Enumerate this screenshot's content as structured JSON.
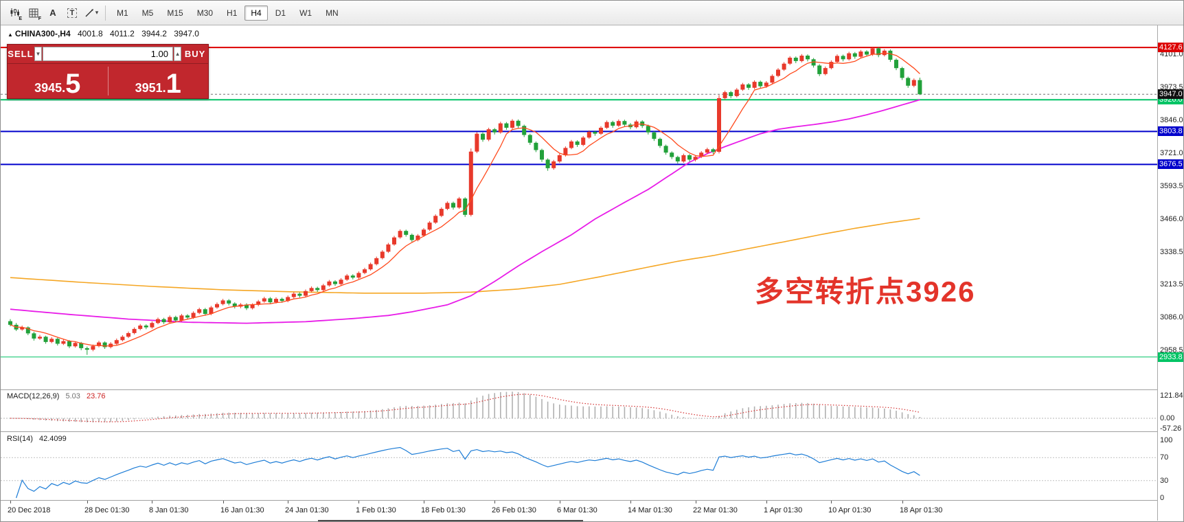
{
  "toolbar": {
    "tools": {
      "a_label": "A",
      "t_label": "T",
      "e_sub": "E",
      "f_sub": "F"
    },
    "timeframes": [
      "M1",
      "M5",
      "M15",
      "M30",
      "H1",
      "H4",
      "D1",
      "W1",
      "MN"
    ],
    "active_timeframe": "H4"
  },
  "symbol_info": {
    "symbol": "CHINA300-,H4",
    "open": "4001.8",
    "high": "4011.2",
    "low": "3944.2",
    "close": "3947.0"
  },
  "trade_panel": {
    "sell_label": "SELL",
    "buy_label": "BUY",
    "volume": "1.00",
    "sell_price": "3945.",
    "sell_price_big": "5",
    "buy_price": "3951.",
    "buy_price_big": "1"
  },
  "annotation": {
    "text": "多空转折点3926",
    "color": "#e3342a"
  },
  "macd_panel": {
    "name": "MACD(12,26,9)",
    "main_value": "5.03",
    "signal_value": "23.76",
    "axis_labels": [
      "121.84",
      "0.00",
      "-57.26"
    ],
    "axis_values": [
      121.84,
      0,
      -57.26
    ]
  },
  "rsi_panel": {
    "name": "RSI(14)",
    "value": "42.4099",
    "axis_labels": [
      "100",
      "70",
      "30",
      "0"
    ],
    "axis_values": [
      100,
      70,
      30,
      0
    ],
    "levels": [
      70,
      30
    ]
  },
  "chart_data": {
    "type": "candlestick",
    "symbol": "CHINA300-",
    "timeframe": "H4",
    "title": "CHINA300-,H4 4001.8 4011.2 3944.2 3947.0",
    "y_tick_labels": [
      "4101.0",
      "3973.5",
      "3846.0",
      "3721.0",
      "3593.5",
      "3466.0",
      "3338.5",
      "3213.5",
      "3086.0",
      "2958.5"
    ],
    "y_tick_values": [
      4101.0,
      3973.5,
      3846.0,
      3721.0,
      3593.5,
      3466.0,
      3338.5,
      3213.5,
      3086.0,
      2958.5
    ],
    "y_range": [
      2814,
      4202
    ],
    "levels": [
      {
        "label": "4127.6",
        "value": 4127.6,
        "color": "#dd0000",
        "width": 2
      },
      {
        "label": "3926.0",
        "value": 3926.0,
        "color": "#00c465",
        "width": 2
      },
      {
        "label": "3803.8",
        "value": 3803.8,
        "color": "#0000cc",
        "width": 2
      },
      {
        "label": "3676.5",
        "value": 3676.5,
        "color": "#0000cc",
        "width": 2
      },
      {
        "label": "2933.8",
        "value": 2933.8,
        "color": "#00c465",
        "width": 1
      }
    ],
    "current_price": {
      "label": "3947.0",
      "value": 3947.0,
      "tag_color": "#111111"
    },
    "x_labels": {
      "texts": [
        "20 Dec 2018",
        "28 Dec 01:30",
        "8 Jan 01:30",
        "16 Jan 01:30",
        "24 Jan 01:30",
        "1 Feb 01:30",
        "18 Feb 01:30",
        "26 Feb 01:30",
        "6 Mar 01:30",
        "14 Mar 01:30",
        "22 Mar 01:30",
        "1 Apr 01:30",
        "10 Apr 01:30",
        "18 Apr 01:30"
      ],
      "indices": [
        0,
        13,
        24,
        36,
        47,
        59,
        70,
        82,
        93,
        105,
        116,
        128,
        139,
        151
      ]
    },
    "up_color": "#e8392b",
    "down_color": "#22a13a",
    "candles": [
      [
        3072,
        3080,
        3052,
        3058
      ],
      [
        3058,
        3065,
        3034,
        3040
      ],
      [
        3040,
        3055,
        3035,
        3048
      ],
      [
        3048,
        3052,
        3018,
        3025
      ],
      [
        3025,
        3031,
        2997,
        3005
      ],
      [
        3005,
        3019,
        3000,
        3012
      ],
      [
        3012,
        3016,
        2985,
        2992
      ],
      [
        2992,
        3010,
        2987,
        3004
      ],
      [
        3004,
        3008,
        2978,
        2985
      ],
      [
        2985,
        3001,
        2980,
        2995
      ],
      [
        2995,
        2999,
        2968,
        2975
      ],
      [
        2975,
        2994,
        2970,
        2988
      ],
      [
        2988,
        2992,
        2960,
        2968
      ],
      [
        2968,
        2974,
        2942,
        2962
      ],
      [
        2962,
        2982,
        2956,
        2976
      ],
      [
        2976,
        2996,
        2971,
        2990
      ],
      [
        2990,
        2994,
        2965,
        2972
      ],
      [
        2972,
        2991,
        2967,
        2985
      ],
      [
        2985,
        3005,
        2980,
        2999
      ],
      [
        2999,
        3018,
        2994,
        3012
      ],
      [
        3012,
        3032,
        3007,
        3026
      ],
      [
        3026,
        3048,
        3021,
        3042
      ],
      [
        3042,
        3061,
        3037,
        3055
      ],
      [
        3055,
        3060,
        3041,
        3048
      ],
      [
        3048,
        3071,
        3043,
        3065
      ],
      [
        3065,
        3086,
        3060,
        3080
      ],
      [
        3080,
        3085,
        3061,
        3068
      ],
      [
        3068,
        3094,
        3063,
        3088
      ],
      [
        3088,
        3093,
        3068,
        3075
      ],
      [
        3075,
        3100,
        3070,
        3094
      ],
      [
        3094,
        3099,
        3079,
        3086
      ],
      [
        3086,
        3110,
        3081,
        3104
      ],
      [
        3104,
        3124,
        3099,
        3118
      ],
      [
        3118,
        3123,
        3093,
        3100
      ],
      [
        3100,
        3131,
        3095,
        3125
      ],
      [
        3125,
        3144,
        3120,
        3138
      ],
      [
        3138,
        3158,
        3133,
        3152
      ],
      [
        3152,
        3157,
        3133,
        3140
      ],
      [
        3140,
        3145,
        3121,
        3128
      ],
      [
        3128,
        3142,
        3122,
        3136
      ],
      [
        3136,
        3141,
        3115,
        3122
      ],
      [
        3122,
        3141,
        3117,
        3135
      ],
      [
        3135,
        3154,
        3130,
        3148
      ],
      [
        3148,
        3166,
        3143,
        3160
      ],
      [
        3160,
        3165,
        3138,
        3145
      ],
      [
        3145,
        3164,
        3140,
        3158
      ],
      [
        3158,
        3163,
        3143,
        3150
      ],
      [
        3150,
        3171,
        3145,
        3165
      ],
      [
        3165,
        3184,
        3160,
        3178
      ],
      [
        3178,
        3183,
        3163,
        3170
      ],
      [
        3170,
        3194,
        3165,
        3188
      ],
      [
        3188,
        3206,
        3183,
        3200
      ],
      [
        3200,
        3205,
        3185,
        3192
      ],
      [
        3192,
        3216,
        3187,
        3210
      ],
      [
        3210,
        3231,
        3205,
        3225
      ],
      [
        3225,
        3230,
        3208,
        3215
      ],
      [
        3215,
        3238,
        3210,
        3232
      ],
      [
        3232,
        3254,
        3227,
        3248
      ],
      [
        3248,
        3253,
        3233,
        3240
      ],
      [
        3240,
        3264,
        3235,
        3258
      ],
      [
        3258,
        3278,
        3253,
        3272
      ],
      [
        3272,
        3298,
        3267,
        3292
      ],
      [
        3292,
        3321,
        3287,
        3315
      ],
      [
        3315,
        3346,
        3310,
        3340
      ],
      [
        3340,
        3374,
        3335,
        3368
      ],
      [
        3368,
        3401,
        3363,
        3395
      ],
      [
        3395,
        3426,
        3390,
        3420
      ],
      [
        3420,
        3425,
        3398,
        3405
      ],
      [
        3405,
        3410,
        3378,
        3385
      ],
      [
        3385,
        3408,
        3380,
        3402
      ],
      [
        3402,
        3431,
        3397,
        3425
      ],
      [
        3425,
        3458,
        3420,
        3452
      ],
      [
        3452,
        3484,
        3447,
        3478
      ],
      [
        3478,
        3511,
        3473,
        3505
      ],
      [
        3505,
        3534,
        3500,
        3528
      ],
      [
        3528,
        3533,
        3502,
        3510
      ],
      [
        3510,
        3551,
        3505,
        3545
      ],
      [
        3545,
        3550,
        3474,
        3482
      ],
      [
        3482,
        3738,
        3476,
        3726
      ],
      [
        3726,
        3801,
        3720,
        3795
      ],
      [
        3795,
        3800,
        3764,
        3772
      ],
      [
        3772,
        3818,
        3766,
        3812
      ],
      [
        3812,
        3817,
        3792,
        3800
      ],
      [
        3800,
        3841,
        3795,
        3835
      ],
      [
        3835,
        3840,
        3810,
        3818
      ],
      [
        3818,
        3851,
        3813,
        3845
      ],
      [
        3845,
        3850,
        3817,
        3825
      ],
      [
        3825,
        3830,
        3782,
        3790
      ],
      [
        3790,
        3795,
        3752,
        3760
      ],
      [
        3760,
        3765,
        3724,
        3732
      ],
      [
        3732,
        3737,
        3686,
        3695
      ],
      [
        3695,
        3700,
        3652,
        3662
      ],
      [
        3662,
        3694,
        3656,
        3688
      ],
      [
        3688,
        3718,
        3682,
        3712
      ],
      [
        3712,
        3746,
        3707,
        3740
      ],
      [
        3740,
        3771,
        3735,
        3765
      ],
      [
        3765,
        3770,
        3744,
        3752
      ],
      [
        3752,
        3786,
        3747,
        3780
      ],
      [
        3780,
        3808,
        3775,
        3802
      ],
      [
        3802,
        3807,
        3787,
        3795
      ],
      [
        3795,
        3824,
        3790,
        3818
      ],
      [
        3818,
        3846,
        3813,
        3840
      ],
      [
        3840,
        3845,
        3818,
        3826
      ],
      [
        3826,
        3850,
        3821,
        3844
      ],
      [
        3844,
        3849,
        3822,
        3830
      ],
      [
        3830,
        3836,
        3812,
        3820
      ],
      [
        3820,
        3848,
        3815,
        3842
      ],
      [
        3842,
        3847,
        3817,
        3825
      ],
      [
        3825,
        3830,
        3792,
        3800
      ],
      [
        3800,
        3805,
        3767,
        3775
      ],
      [
        3775,
        3780,
        3740,
        3748
      ],
      [
        3748,
        3753,
        3714,
        3722
      ],
      [
        3722,
        3727,
        3697,
        3705
      ],
      [
        3705,
        3710,
        3680,
        3688
      ],
      [
        3688,
        3718,
        3683,
        3712
      ],
      [
        3712,
        3717,
        3687,
        3695
      ],
      [
        3695,
        3712,
        3688,
        3706
      ],
      [
        3706,
        3728,
        3701,
        3722
      ],
      [
        3722,
        3741,
        3717,
        3735
      ],
      [
        3735,
        3740,
        3717,
        3725
      ],
      [
        3725,
        3944,
        3719,
        3932
      ],
      [
        3932,
        3961,
        3926,
        3955
      ],
      [
        3955,
        3960,
        3932,
        3940
      ],
      [
        3940,
        3971,
        3935,
        3965
      ],
      [
        3965,
        3991,
        3960,
        3985
      ],
      [
        3985,
        3990,
        3964,
        3972
      ],
      [
        3972,
        4001,
        3967,
        3995
      ],
      [
        3995,
        4000,
        3970,
        3978
      ],
      [
        3978,
        3998,
        3972,
        3992
      ],
      [
        3992,
        4024,
        3987,
        4018
      ],
      [
        4018,
        4048,
        4013,
        4042
      ],
      [
        4042,
        4071,
        4037,
        4065
      ],
      [
        4065,
        4094,
        4060,
        4088
      ],
      [
        4088,
        4093,
        4067,
        4075
      ],
      [
        4075,
        4102,
        4070,
        4096
      ],
      [
        4096,
        4101,
        4074,
        4082
      ],
      [
        4082,
        4087,
        4050,
        4058
      ],
      [
        4058,
        4063,
        4017,
        4025
      ],
      [
        4025,
        4054,
        4020,
        4048
      ],
      [
        4048,
        4078,
        4043,
        4072
      ],
      [
        4072,
        4101,
        4067,
        4095
      ],
      [
        4095,
        4100,
        4074,
        4082
      ],
      [
        4082,
        4111,
        4077,
        4105
      ],
      [
        4105,
        4110,
        4084,
        4092
      ],
      [
        4092,
        4118,
        4087,
        4112
      ],
      [
        4112,
        4117,
        4092,
        4100
      ],
      [
        4100,
        4127,
        4095,
        4124
      ],
      [
        4124,
        4128,
        4090,
        4098
      ],
      [
        4098,
        4121,
        4093,
        4115
      ],
      [
        4115,
        4120,
        4072,
        4080
      ],
      [
        4080,
        4085,
        4040,
        4048
      ],
      [
        4048,
        4053,
        4002,
        4010
      ],
      [
        4010,
        4015,
        3972,
        3980
      ],
      [
        3980,
        4008,
        3974,
        4002
      ],
      [
        4001.8,
        4011.2,
        3944.2,
        3947
      ]
    ],
    "ma_fast": {
      "period": 7,
      "color": "#ff4a1d"
    },
    "ma_mid": {
      "color": "#e81ce8",
      "points": [
        [
          0,
          3118
        ],
        [
          10,
          3098
        ],
        [
          20,
          3080
        ],
        [
          30,
          3068
        ],
        [
          40,
          3064
        ],
        [
          50,
          3070
        ],
        [
          58,
          3082
        ],
        [
          64,
          3094
        ],
        [
          68,
          3108
        ],
        [
          74,
          3135
        ],
        [
          78,
          3170
        ],
        [
          82,
          3225
        ],
        [
          86,
          3285
        ],
        [
          90,
          3340
        ],
        [
          95,
          3405
        ],
        [
          99,
          3466
        ],
        [
          104,
          3530
        ],
        [
          108,
          3580
        ],
        [
          112,
          3640
        ],
        [
          115,
          3685
        ],
        [
          118,
          3718
        ],
        [
          121,
          3745
        ],
        [
          124,
          3770
        ],
        [
          127,
          3795
        ],
        [
          130,
          3812
        ],
        [
          133,
          3822
        ],
        [
          136,
          3830
        ],
        [
          139,
          3840
        ],
        [
          142,
          3852
        ],
        [
          145,
          3868
        ],
        [
          148,
          3886
        ],
        [
          151,
          3906
        ],
        [
          154,
          3926
        ]
      ]
    },
    "ma_slow": {
      "color": "#f5a623",
      "points": [
        [
          0,
          3240
        ],
        [
          12,
          3222
        ],
        [
          24,
          3206
        ],
        [
          36,
          3193
        ],
        [
          48,
          3185
        ],
        [
          60,
          3180
        ],
        [
          70,
          3180
        ],
        [
          78,
          3184
        ],
        [
          86,
          3196
        ],
        [
          93,
          3214
        ],
        [
          100,
          3244
        ],
        [
          107,
          3276
        ],
        [
          113,
          3303
        ],
        [
          119,
          3325
        ],
        [
          125,
          3352
        ],
        [
          131,
          3378
        ],
        [
          137,
          3405
        ],
        [
          143,
          3430
        ],
        [
          149,
          3452
        ],
        [
          154,
          3468
        ]
      ]
    },
    "macd": {
      "histogram_color": "#b0b0b0",
      "signal_color": "#d42f2f"
    },
    "rsi": {
      "color": "#1c7cd6"
    }
  }
}
